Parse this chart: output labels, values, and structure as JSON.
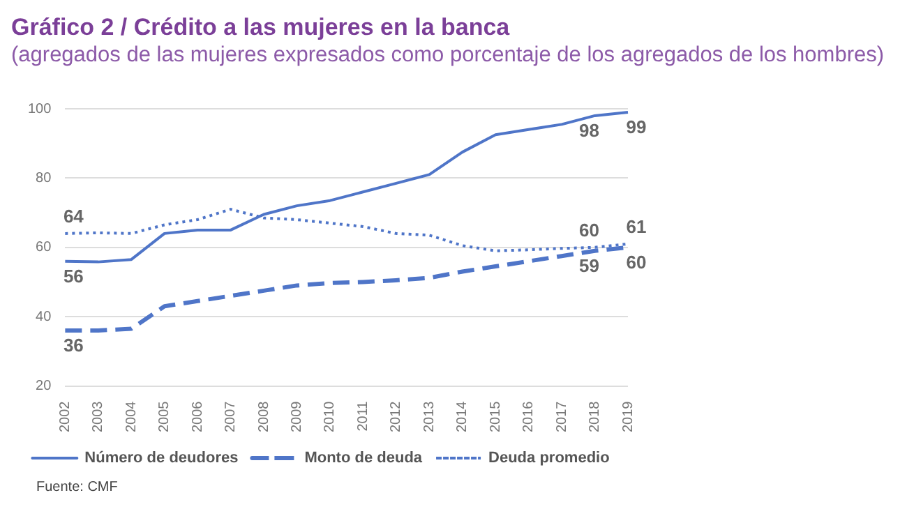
{
  "chart_data": {
    "type": "line",
    "title": "Gráfico 2 / Crédito a las mujeres en la banca",
    "subtitle": "(agregados de las mujeres expresados como porcentaje de los agregados de los hombres)",
    "categories": [
      "2002",
      "2003",
      "2004",
      "2005",
      "2006",
      "2007",
      "2008",
      "2009",
      "2010",
      "2011",
      "2012",
      "2013",
      "2014",
      "2015",
      "2016",
      "2017",
      "2018",
      "2019"
    ],
    "series": [
      {
        "name": "Número de deudores",
        "color": "#4f75c8",
        "line_style": "solid",
        "values": [
          56,
          55.8,
          56.5,
          64,
          65,
          65,
          69.5,
          72,
          73.5,
          76,
          78.5,
          81,
          87.5,
          92.5,
          94,
          95.5,
          98,
          99
        ],
        "value_labels": [
          "56",
          null,
          null,
          null,
          null,
          null,
          null,
          null,
          null,
          null,
          null,
          null,
          null,
          null,
          null,
          null,
          "98",
          "99"
        ]
      },
      {
        "name": "Monto de deuda",
        "color": "#4f75c8",
        "line_style": "dashed",
        "values": [
          36,
          36,
          36.5,
          43,
          44.5,
          46,
          47.5,
          49,
          49.7,
          50,
          50.5,
          51.2,
          53,
          54.5,
          56,
          57.5,
          59,
          60
        ],
        "value_labels": [
          "36",
          null,
          null,
          null,
          null,
          null,
          null,
          null,
          null,
          null,
          null,
          null,
          null,
          null,
          null,
          null,
          "59",
          "60"
        ]
      },
      {
        "name": "Deuda promedio",
        "color": "#4f75c8",
        "line_style": "dotted",
        "values": [
          64,
          64.2,
          64,
          66.5,
          68,
          71,
          68.5,
          68,
          67,
          66,
          64,
          63.5,
          60.5,
          59,
          59.3,
          59.7,
          60,
          61
        ],
        "value_labels": [
          "64",
          null,
          null,
          null,
          null,
          null,
          null,
          null,
          null,
          null,
          null,
          null,
          null,
          null,
          null,
          null,
          "60",
          "61"
        ]
      }
    ],
    "ylim": [
      20,
      100
    ],
    "yticks": [
      20,
      40,
      60,
      80,
      100
    ],
    "grid": "y",
    "legend": "bottom",
    "annotations": [
      "Fuente: CMF"
    ]
  }
}
